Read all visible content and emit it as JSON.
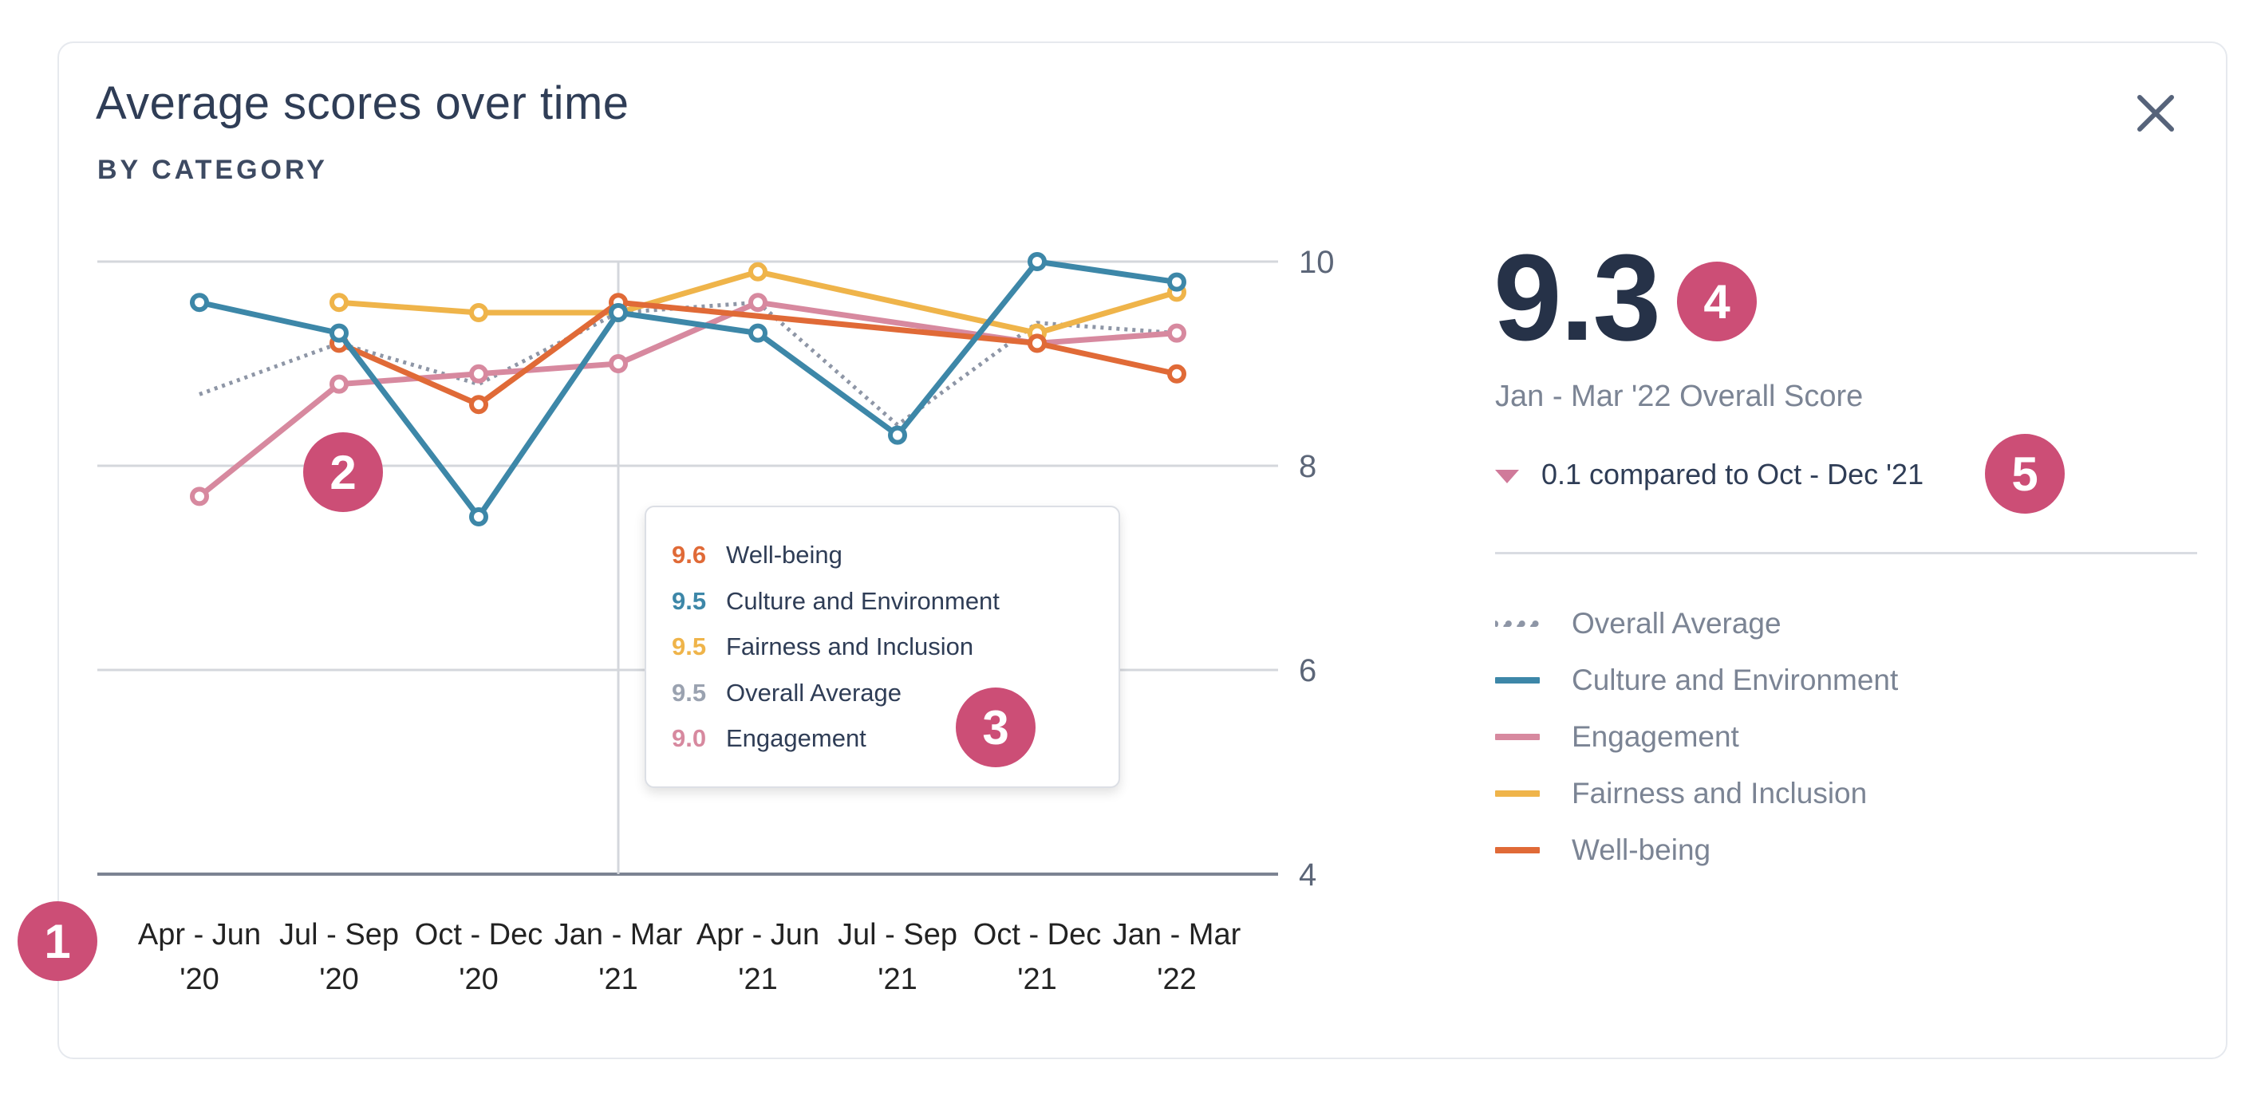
{
  "header": {
    "title": "Average scores over time",
    "subtitle": "BY CATEGORY"
  },
  "colors": {
    "overall": "#8e96a6",
    "culture": "#3d87a8",
    "engagement": "#d7899f",
    "fairness": "#efb44a",
    "wellbeing": "#e06a37",
    "badge": "#cc4e76"
  },
  "chart_data": {
    "type": "line",
    "y_ticks": [
      "10",
      "8",
      "6",
      "4"
    ],
    "ylim": [
      4,
      10
    ],
    "x_categories": [
      [
        "Apr - Jun",
        "'20"
      ],
      [
        "Jul - Sep",
        "'20"
      ],
      [
        "Oct - Dec",
        "'20"
      ],
      [
        "Jan - Mar",
        "'21"
      ],
      [
        "Apr - Jun",
        "'21"
      ],
      [
        "Jul - Sep",
        "'21"
      ],
      [
        "Oct - Dec",
        "'21"
      ],
      [
        "Jan - Mar",
        "'22"
      ]
    ],
    "grid": true,
    "series": [
      {
        "key": "overall",
        "name": "Overall Average",
        "style": "dotted",
        "values": [
          8.7,
          9.2,
          8.8,
          9.5,
          9.6,
          8.4,
          9.4,
          9.3
        ]
      },
      {
        "key": "engagement",
        "name": "Engagement",
        "style": "solid",
        "values": [
          7.7,
          8.8,
          8.9,
          9.0,
          9.6,
          null,
          9.2,
          9.3
        ]
      },
      {
        "key": "fairness",
        "name": "Fairness and Inclusion",
        "style": "solid",
        "values": [
          null,
          9.6,
          9.5,
          9.5,
          9.9,
          null,
          9.3,
          9.7
        ]
      },
      {
        "key": "wellbeing",
        "name": "Well-being",
        "style": "solid",
        "values": [
          null,
          9.2,
          8.6,
          9.6,
          null,
          null,
          9.2,
          8.9
        ]
      },
      {
        "key": "culture",
        "name": "Culture and Environment",
        "style": "solid",
        "values": [
          9.6,
          9.3,
          7.5,
          9.5,
          9.3,
          8.3,
          10.0,
          9.8
        ]
      }
    ],
    "hover_index": 3
  },
  "tooltip": {
    "rows": [
      {
        "value": "9.6",
        "label": "Well-being",
        "color": "#e06a37"
      },
      {
        "value": "9.5",
        "label": "Culture and Environment",
        "color": "#3d87a8"
      },
      {
        "value": "9.5",
        "label": "Fairness and Inclusion",
        "color": "#efb44a"
      },
      {
        "value": "9.5",
        "label": "Overall Average",
        "color": "#9aa2b0"
      },
      {
        "value": "9.0",
        "label": "Engagement",
        "color": "#d7899f"
      }
    ]
  },
  "summary": {
    "score": "9.3",
    "score_label": "Jan - Mar '22 Overall Score",
    "comparison": "0.1 compared to Oct - Dec '21"
  },
  "legend": [
    {
      "label": "Overall Average",
      "color": "#8e96a6",
      "style": "dotted"
    },
    {
      "label": "Culture and Environment",
      "color": "#3d87a8",
      "style": "solid"
    },
    {
      "label": "Engagement",
      "color": "#d7899f",
      "style": "solid"
    },
    {
      "label": "Fairness and Inclusion",
      "color": "#efb44a",
      "style": "solid"
    },
    {
      "label": "Well-being",
      "color": "#e06a37",
      "style": "solid"
    }
  ],
  "badges": {
    "b1": "1",
    "b2": "2",
    "b3": "3",
    "b4": "4",
    "b5": "5"
  }
}
